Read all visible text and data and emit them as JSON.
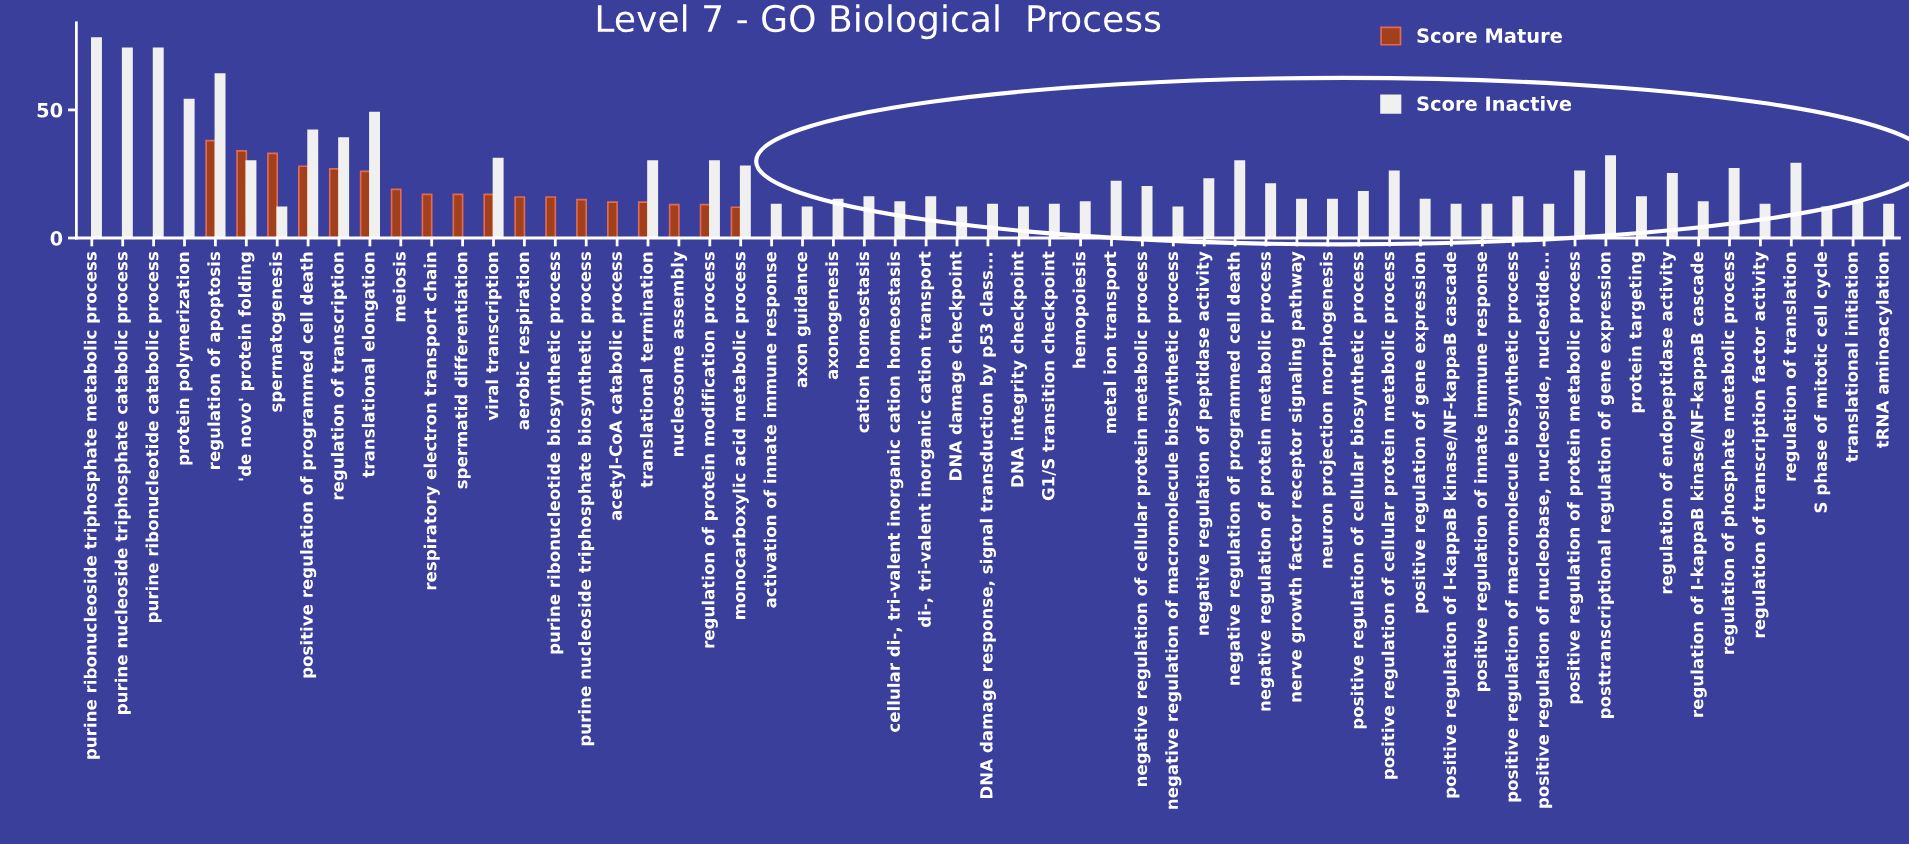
{
  "chart_data": {
    "type": "bar",
    "title": "Level 7 - GO Biological  Process",
    "categories": [
      "purine ribonucleoside triphosphate metabolic process",
      "purine nucleoside triphosphate catabolic process",
      "purine ribonucleotide catabolic process",
      "protein polymerization",
      "regulation of apoptosis",
      "'de novo' protein folding",
      "spermatogenesis",
      "positive regulation of programmed cell death",
      "regulation of transcription",
      "translational elongation",
      "meiosis",
      "respiratory electron transport chain",
      "spermatid differentiation",
      "viral transcription",
      "aerobic respiration",
      "purine ribonucleotide biosynthetic process",
      "purine nucleoside triphosphate biosynthetic process",
      "acetyl-CoA catabolic process",
      "translational termination",
      "nucleosome assembly",
      "regulation of protein modification process",
      "monocarboxylic acid metabolic process",
      "activation of innate immune response",
      "axon guidance",
      "axonogenesis",
      "cation homeostasis",
      "cellular di-, tri-valent inorganic cation homeostasis",
      "di-, tri-valent inorganic cation transport",
      "DNA damage checkpoint",
      "DNA damage response, signal transduction by p53 class...",
      "DNA integrity checkpoint",
      "G1/S transition checkpoint",
      "hemopoiesis",
      "metal ion transport",
      "negative regulation of cellular protein metabolic process",
      "negative regulation of macromolecule biosynthetic process",
      "negative regulation of peptidase activity",
      "negative regulation of programmed cell death",
      "negative regulation of protein metabolic process",
      "nerve growth factor receptor signaling pathway",
      "neuron projection morphogenesis",
      "positive regulation of cellular biosynthetic process",
      "positive regulation of cellular protein metabolic process",
      "positive regulation of gene expression",
      "positive regulation of I-kappaB kinase/NF-kappaB cascade",
      "positive regulation of innate immune response",
      "positive regulation of macromolecule biosynthetic process",
      "positive regulation of nucleobase, nucleoside, nucleotide...",
      "positive regulation of protein metabolic process",
      "posttranscriptional regulation of gene expression",
      "protein targeting",
      "regulation of endopeptidase activity",
      "regulation of I-kappaB kinase/NF-kappaB cascade",
      "regulation of phosphate metabolic process",
      "regulation of transcription factor activity",
      "regulation of translation",
      "S phase of mitotic cell cycle",
      "translational initiation",
      "tRNA aminoacylation"
    ],
    "series": [
      {
        "name": "Score Mature",
        "color": "#a3401c",
        "values": [
          null,
          null,
          null,
          null,
          38,
          34,
          33,
          28,
          27,
          26,
          19,
          17,
          17,
          17,
          16,
          16,
          15,
          14,
          14,
          13,
          13,
          12,
          null,
          null,
          null,
          null,
          null,
          null,
          null,
          null,
          null,
          null,
          null,
          null,
          null,
          null,
          null,
          null,
          null,
          null,
          null,
          null,
          null,
          null,
          null,
          null,
          null,
          null,
          null,
          null,
          null,
          null,
          null,
          null,
          null,
          null,
          null,
          null,
          null
        ]
      },
      {
        "name": "Score Inactive",
        "color": "#f0f0f0",
        "values": [
          78,
          74,
          74,
          54,
          64,
          30,
          12,
          42,
          39,
          49,
          null,
          null,
          null,
          31,
          null,
          null,
          null,
          null,
          30,
          null,
          30,
          28,
          13,
          12,
          15,
          16,
          14,
          16,
          12,
          13,
          12,
          13,
          14,
          22,
          20,
          12,
          23,
          30,
          21,
          15,
          15,
          18,
          26,
          15,
          13,
          13,
          16,
          13,
          26,
          32,
          16,
          25,
          14,
          27,
          13,
          29,
          12,
          14,
          13
        ]
      }
    ],
    "ylim": [
      0,
      84
    ],
    "yticks": [
      0,
      50
    ],
    "grid": false,
    "legend": "top right"
  }
}
